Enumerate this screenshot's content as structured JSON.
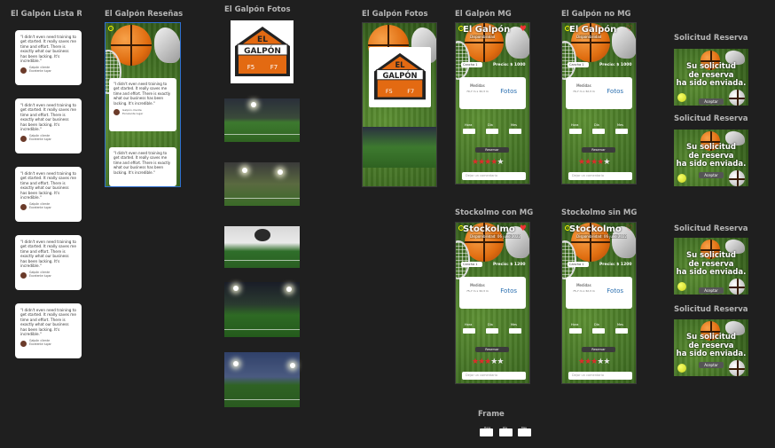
{
  "labels": {
    "lista": "El Galpón Lista R...",
    "resenas": "El Galpón Reseñas",
    "fotos_col": "El Galpón Fotos",
    "fotos": "El Galpón Fotos",
    "mg": "El Galpón MG",
    "nomg": "El Galpón no MG",
    "sol1": "Solicitud Reserva...",
    "sol2": "Solicitud Reserva...",
    "sol3": "Solicitud Reserva...",
    "sol4": "Solicitud Reserva...",
    "stk_con": "Stockolmo con MG",
    "stk_sin": "Stockolmo sin MG",
    "frame": "Frame"
  },
  "review": {
    "text_a": "\"I didn't even need training to get started. It really saves me time and effort. There is exactly what our business has been lacking. It's incredible.\"",
    "text_b": "\"I didn't even need training to get started. It really saves me time and effort. There is exactly what our business has been lacking. It's incredible.\"",
    "name": "Galpón cliente",
    "role": "Excelente lugar"
  },
  "logo": {
    "line1": "EL",
    "line2": "GALPÓN",
    "left": "F5",
    "right": "F7"
  },
  "mg_frames": [
    {
      "title": "El Galpón",
      "sub": "Disponibilidad",
      "pill": "Cancha 1",
      "price": "Precio: $ 1000",
      "medidas": "Medidas",
      "dims": "70,7 m x 32,3 m",
      "fotos": "Fotos",
      "stars_on": 4,
      "btn": "Reservar",
      "input": "Dejar un comentario",
      "heart": "♥"
    },
    {
      "title": "El Galpón",
      "sub": "Disponibilidad",
      "pill": "Cancha 1",
      "price": "Precio: $ 1000",
      "medidas": "Medidas",
      "dims": "70,7 m x 32,3 m",
      "fotos": "Fotos",
      "stars_on": 4,
      "btn": "Reservar",
      "input": "Dejar un comentario",
      "heart": "♡"
    },
    {
      "title": "Stockolmo",
      "sub": "Disponibilidad: 06 julio 2022",
      "pill": "Cancha 1",
      "price": "Precio: $ 1200",
      "medidas": "Medidas",
      "dims": "75,7 m x 32,3 m",
      "fotos": "Fotos",
      "stars_on": 3,
      "btn": "Reservar",
      "input": "Dejar un comentario",
      "heart": "♥"
    },
    {
      "title": "Stockolmo",
      "sub": "Disponibilidad: 06 julio 2022",
      "pill": "Cancha 1",
      "price": "Precio: $ 1200",
      "medidas": "Medidas",
      "dims": "75,7 m x 32,3 m",
      "fotos": "Fotos",
      "stars_on": 3,
      "btn": "Reservar",
      "input": "Dejar un comentario",
      "heart": "♡"
    }
  ],
  "times": [
    "Hora",
    "Día",
    "Mes"
  ],
  "solicitud": {
    "line1": "Su solicitud",
    "line2": "de reserva",
    "line3": "ha sido enviada.",
    "accept": "Aceptar"
  },
  "frame_times": [
    "Hora",
    "Día",
    "Mes"
  ]
}
